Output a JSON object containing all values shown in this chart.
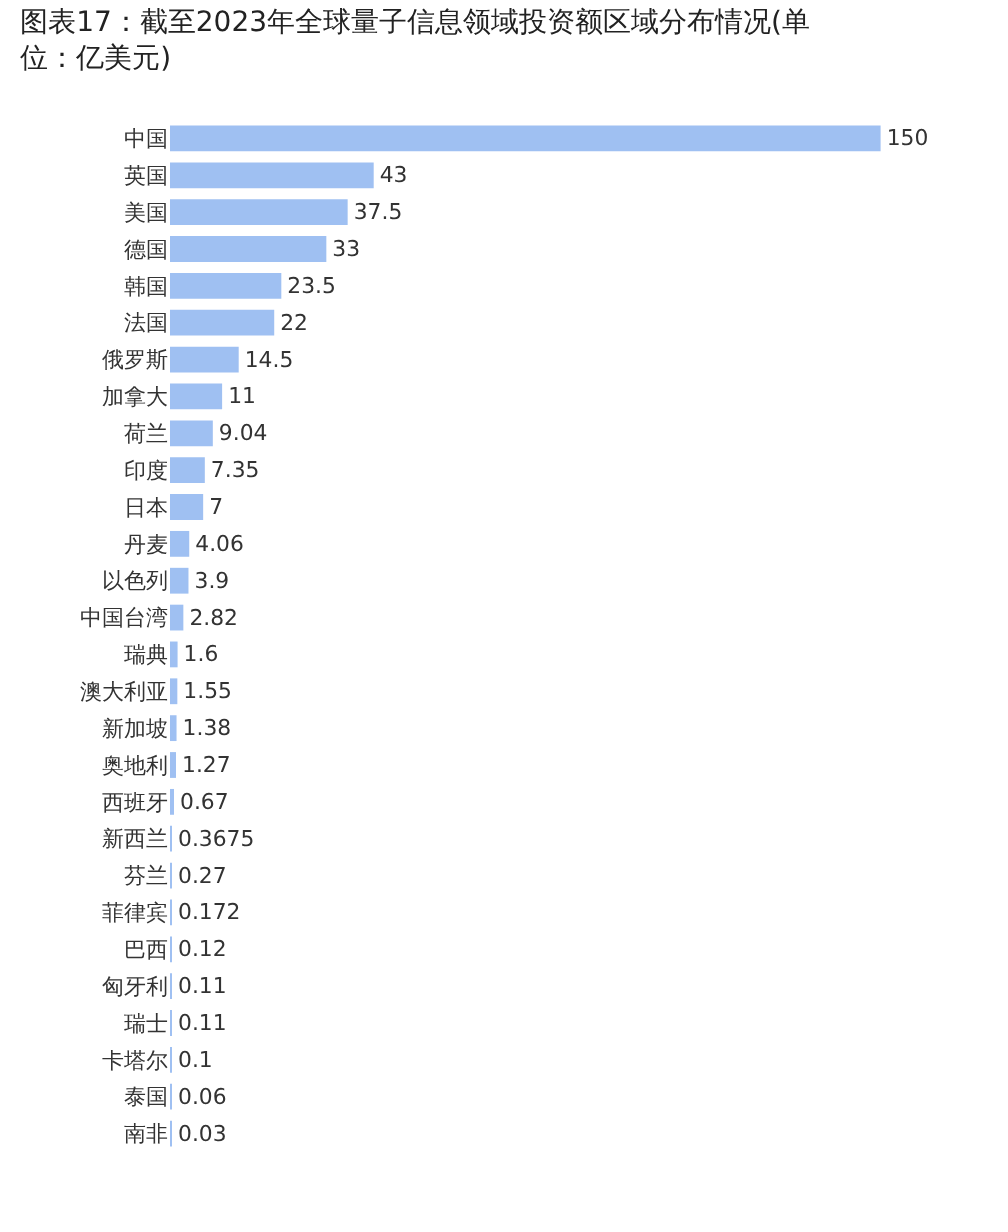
{
  "chart_data": {
    "type": "bar",
    "orientation": "horizontal",
    "title": "图表17：截至2023年全球量子信息领域投资额区域分布情况(单位：亿美元)",
    "categories": [
      "中国",
      "英国",
      "美国",
      "德国",
      "韩国",
      "法国",
      "俄罗斯",
      "加拿大",
      "荷兰",
      "印度",
      "日本",
      "丹麦",
      "以色列",
      "中国台湾",
      "瑞典",
      "澳大利亚",
      "新加坡",
      "奥地利",
      "西班牙",
      "新西兰",
      "芬兰",
      "菲律宾",
      "巴西",
      "匈牙利",
      "瑞士",
      "卡塔尔",
      "泰国",
      "南非"
    ],
    "values": [
      150,
      43,
      37.5,
      33,
      23.5,
      22,
      14.5,
      11,
      9.04,
      7.35,
      7,
      4.06,
      3.9,
      2.82,
      1.6,
      1.55,
      1.38,
      1.27,
      0.67,
      0.3675,
      0.27,
      0.172,
      0.12,
      0.11,
      0.11,
      0.1,
      0.06,
      0.03
    ],
    "color": "#9fc0f2",
    "data_labels": true
  }
}
